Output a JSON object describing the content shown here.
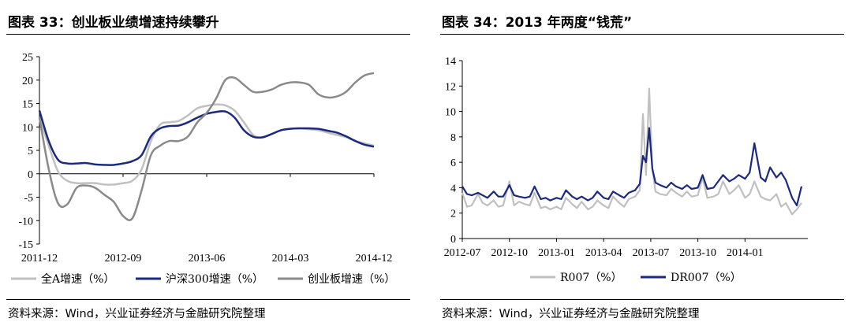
{
  "left": {
    "title": "图表 33：创业板业绩增速持续攀升",
    "source": "资料来源：Wind，兴业证券经济与金融研究院整理",
    "chart_data": {
      "type": "line",
      "yticks": [
        "25",
        "20",
        "15",
        "10",
        "5",
        "0",
        "-5",
        "-10",
        "-15"
      ],
      "xticks": [
        "2011-12",
        "2012-09",
        "2013-06",
        "2014-03",
        "2014-12"
      ],
      "ylim": [
        -15,
        25
      ],
      "xlim": [
        0,
        36
      ],
      "grid": false,
      "legend_placement": "bottom",
      "series": [
        {
          "name": "全A增速（%）",
          "color": "#c0c0c0",
          "x": [
            0,
            1,
            2,
            3,
            4,
            5,
            6,
            7,
            8,
            9,
            10,
            11,
            12,
            13,
            14,
            15,
            16,
            17,
            18,
            19,
            20,
            21,
            22,
            23,
            24,
            25,
            26,
            27,
            28,
            29,
            30,
            31,
            32,
            33,
            34,
            35,
            36
          ],
          "y": [
            12,
            6,
            0.5,
            -1.5,
            -2,
            -2,
            -2,
            -2.3,
            -2.3,
            -2,
            -1.5,
            1,
            7,
            10.5,
            11,
            11.3,
            12.5,
            14,
            14.5,
            14.8,
            14.6,
            13.5,
            11,
            8.3,
            7.7,
            8.5,
            9.3,
            9.6,
            9.7,
            9.5,
            9.3,
            8.8,
            8.3,
            7.8,
            7,
            6.5,
            6
          ]
        },
        {
          "name": "沪深300增速（%）",
          "color": "#1b2a80",
          "x": [
            0,
            1,
            2,
            3,
            4,
            5,
            6,
            7,
            8,
            9,
            10,
            11,
            12,
            13,
            14,
            15,
            16,
            17,
            18,
            19,
            20,
            21,
            22,
            23,
            24,
            25,
            26,
            27,
            28,
            29,
            30,
            31,
            32,
            33,
            34,
            35,
            36
          ],
          "y": [
            13.5,
            7,
            3,
            2.2,
            2.2,
            2.3,
            2,
            1.9,
            1.9,
            2.2,
            2.7,
            4,
            8,
            9.7,
            10.2,
            10.3,
            11,
            12,
            12.8,
            13.2,
            13.3,
            12,
            9.3,
            7.9,
            7.8,
            8.5,
            9.3,
            9.6,
            9.7,
            9.7,
            9.6,
            9.2,
            8.8,
            8,
            7,
            6.2,
            5.8
          ]
        },
        {
          "name": "创业板增速（%）",
          "color": "#8a8a8a",
          "x": [
            0,
            1,
            2,
            3,
            4,
            5,
            6,
            7,
            8,
            9,
            10,
            11,
            12,
            13,
            14,
            15,
            16,
            17,
            18,
            19,
            20,
            21,
            22,
            23,
            24,
            25,
            26,
            27,
            28,
            29,
            30,
            31,
            32,
            33,
            34,
            35,
            36
          ],
          "y": [
            12,
            1,
            -6.3,
            -6.5,
            -3,
            -2.5,
            -3,
            -4.5,
            -6,
            -9,
            -9.5,
            -3.5,
            4,
            6,
            7,
            7,
            8,
            11,
            13,
            16,
            20,
            20.5,
            19,
            17.5,
            17.5,
            18,
            19,
            19.5,
            19.5,
            19,
            17,
            16.3,
            16.5,
            17.5,
            19.5,
            21,
            21.5
          ]
        }
      ]
    }
  },
  "right": {
    "title": "图表 34：2013 年两度“钱荒”",
    "source": "资料来源：Wind，兴业证券经济与金融研究院整理",
    "chart_data": {
      "type": "line",
      "yticks": [
        "14",
        "12",
        "10",
        "8",
        "6",
        "4",
        "2",
        "0"
      ],
      "xticks": [
        "2012-07",
        "2012-10",
        "2013-01",
        "2013-04",
        "2013-07",
        "2013-10",
        "2014-01"
      ],
      "ylim": [
        0,
        14
      ],
      "xlim": [
        0,
        22
      ],
      "grid": false,
      "legend_placement": "bottom",
      "series": [
        {
          "name": "R007（%）",
          "color": "#c0c0c0",
          "x": [
            0,
            0.3,
            0.6,
            1,
            1.3,
            1.6,
            2,
            2.3,
            2.6,
            3,
            3.3,
            3.6,
            4,
            4.3,
            4.6,
            5,
            5.3,
            5.6,
            6,
            6.3,
            6.6,
            7,
            7.3,
            7.6,
            8,
            8.3,
            8.6,
            9,
            9.3,
            9.6,
            10,
            10.3,
            10.6,
            11,
            11.3,
            11.5,
            11.7,
            11.9,
            12.1,
            12.3,
            12.6,
            13,
            13.3,
            13.6,
            14,
            14.3,
            14.6,
            15,
            15.3,
            15.6,
            16,
            16.3,
            16.6,
            17,
            17.3,
            17.6,
            18,
            18.3,
            18.6,
            19,
            19.3,
            19.6,
            20,
            20.3,
            20.6,
            21,
            21.3,
            21.6
          ],
          "y": [
            3.6,
            2.5,
            2.6,
            3.5,
            2.8,
            2.6,
            3,
            2.5,
            2.6,
            4.5,
            2.6,
            2.9,
            2.7,
            2.6,
            3.6,
            2.4,
            2.5,
            2.3,
            2.5,
            2.3,
            3.2,
            2.7,
            2.4,
            2.9,
            2.3,
            2.5,
            3,
            2.6,
            2.4,
            3.3,
            2.8,
            2.5,
            3.1,
            3.3,
            3.8,
            9.8,
            5,
            11.8,
            5.5,
            3.7,
            3.5,
            3.4,
            3.9,
            3.6,
            3.3,
            3.7,
            3.3,
            3.4,
            4.8,
            3.2,
            3.3,
            3.5,
            4.5,
            3.5,
            3.8,
            4.2,
            3.2,
            3.5,
            4.5,
            3.3,
            3.1,
            3,
            3.5,
            2.5,
            2.8,
            1.9,
            2.3,
            2.8
          ]
        },
        {
          "name": "DR007（%）",
          "color": "#1b2a80",
          "x": [
            0,
            0.3,
            0.6,
            1,
            1.3,
            1.6,
            2,
            2.3,
            2.6,
            3,
            3.3,
            3.6,
            4,
            4.3,
            4.6,
            5,
            5.3,
            5.6,
            6,
            6.3,
            6.6,
            7,
            7.3,
            7.6,
            8,
            8.3,
            8.6,
            9,
            9.3,
            9.6,
            10,
            10.3,
            10.6,
            11,
            11.3,
            11.5,
            11.7,
            11.9,
            12.1,
            12.3,
            12.6,
            13,
            13.3,
            13.6,
            14,
            14.3,
            14.6,
            15,
            15.3,
            15.6,
            16,
            16.3,
            16.6,
            17,
            17.3,
            17.6,
            18,
            18.3,
            18.6,
            19,
            19.3,
            19.6,
            20,
            20.3,
            20.6,
            21,
            21.3,
            21.6
          ],
          "y": [
            4.1,
            3.5,
            3.4,
            3.6,
            3.4,
            3.2,
            3.7,
            3.3,
            3.3,
            4.2,
            3.4,
            3.3,
            3.2,
            3.3,
            4.1,
            3.1,
            3.2,
            3,
            3.2,
            3.1,
            3.8,
            3.3,
            3.1,
            3.3,
            3,
            3.2,
            3.7,
            3.2,
            3.1,
            3.7,
            3.4,
            3.2,
            3.6,
            3.8,
            4.3,
            6.5,
            6,
            8.7,
            5.5,
            4.4,
            4.2,
            4,
            4.4,
            4.1,
            3.9,
            4.2,
            3.9,
            4,
            5,
            3.9,
            4,
            4.5,
            5,
            4.5,
            4.7,
            5,
            4.7,
            5.2,
            7.5,
            4.8,
            4.5,
            5.6,
            4.8,
            5.2,
            4.6,
            3.2,
            2.6,
            4.1
          ]
        }
      ]
    }
  }
}
